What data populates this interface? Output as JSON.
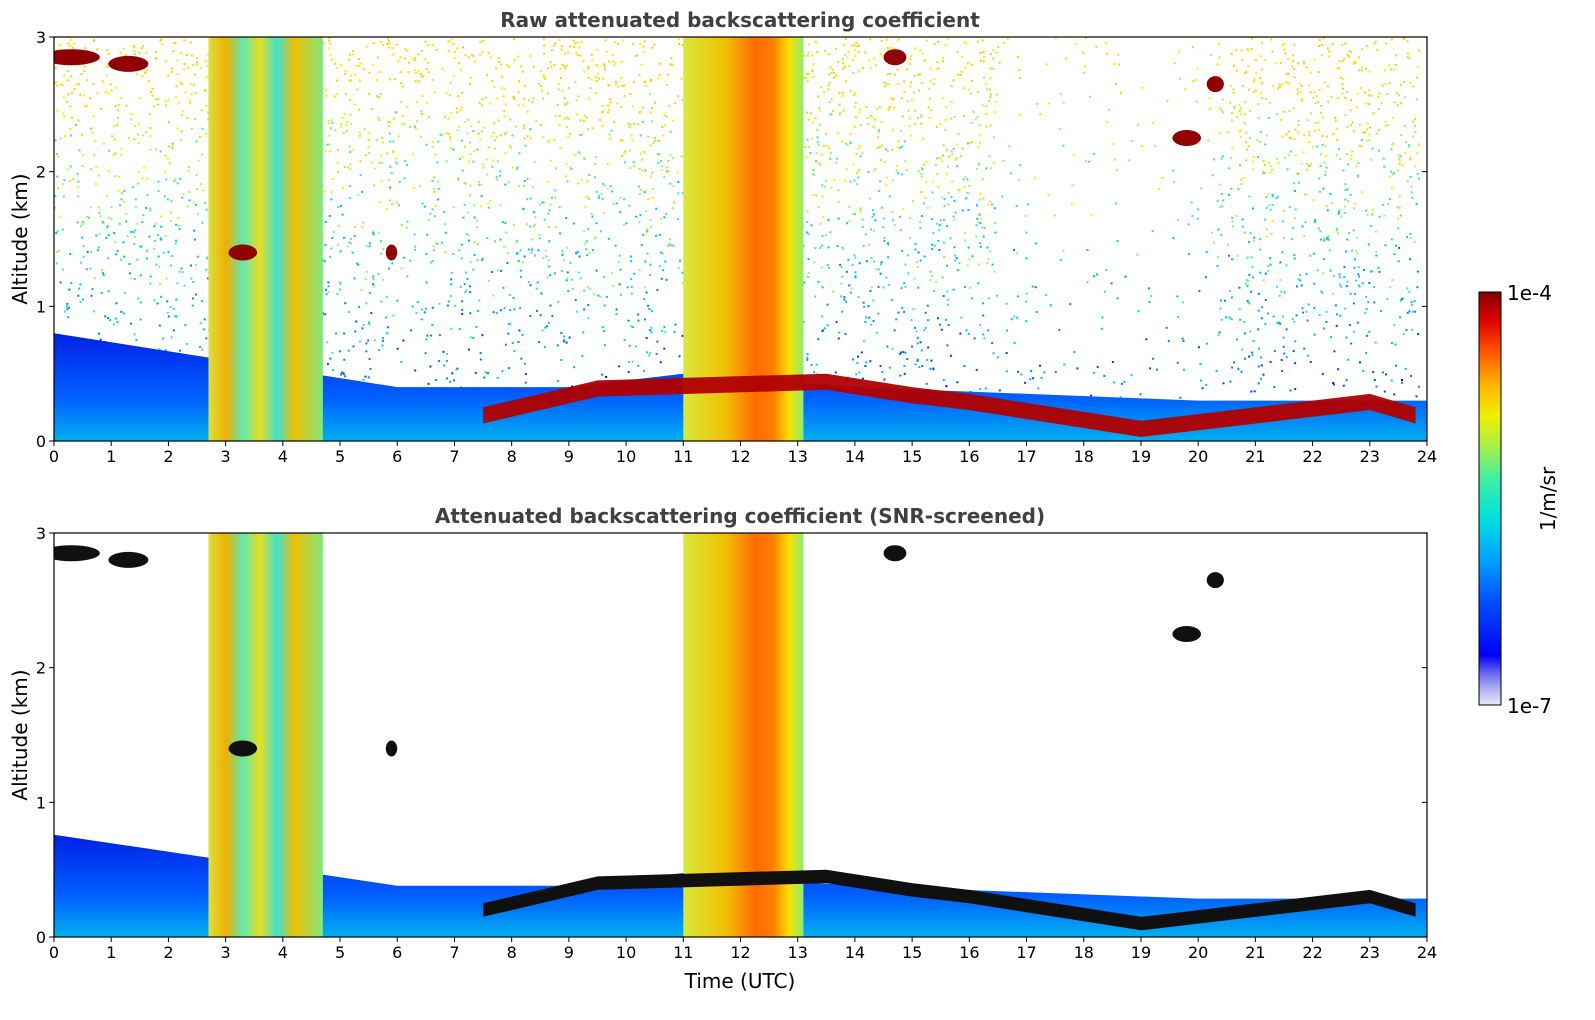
{
  "chart_data": [
    {
      "type": "heatmap",
      "title": "Raw attenuated backscattering coefficient",
      "xlabel": "",
      "ylabel": "Altitude (km)",
      "xlim": [
        0,
        24
      ],
      "ylim": [
        0,
        3
      ],
      "x_ticks": [
        "0",
        "1",
        "2",
        "3",
        "4",
        "5",
        "6",
        "7",
        "8",
        "9",
        "10",
        "11",
        "12",
        "13",
        "14",
        "15",
        "16",
        "17",
        "18",
        "19",
        "20",
        "21",
        "22",
        "23",
        "24"
      ],
      "y_ticks": [
        "0",
        "1",
        "2",
        "3"
      ],
      "scale": "log",
      "colormap": "jet",
      "features": {
        "aerosol_layer_top_km": [
          [
            0,
            0.8
          ],
          [
            3,
            0.6
          ],
          [
            6,
            0.4
          ],
          [
            9,
            0.4
          ],
          [
            11,
            0.5
          ],
          [
            14,
            0.4
          ],
          [
            20,
            0.3
          ],
          [
            22,
            0.3
          ],
          [
            24,
            0.3
          ]
        ],
        "dense_columns_utc": [
          [
            2.7,
            4.7
          ],
          [
            11.0,
            13.1
          ]
        ],
        "low_cloud_top_km": [
          [
            7.5,
            0.25
          ],
          [
            9.5,
            0.45
          ],
          [
            13.5,
            0.5
          ],
          [
            15,
            0.4
          ],
          [
            16,
            0.35
          ],
          [
            19,
            0.15
          ],
          [
            22,
            0.3
          ],
          [
            23,
            0.35
          ],
          [
            23.8,
            0.25
          ]
        ]
      }
    },
    {
      "type": "heatmap",
      "title": "Attenuated backscattering coefficient (SNR-screened)",
      "xlabel": "Time (UTC)",
      "ylabel": "Altitude (km)",
      "xlim": [
        0,
        24
      ],
      "ylim": [
        0,
        3
      ],
      "x_ticks": [
        "0",
        "1",
        "2",
        "3",
        "4",
        "5",
        "6",
        "7",
        "8",
        "9",
        "10",
        "11",
        "12",
        "13",
        "14",
        "15",
        "16",
        "17",
        "18",
        "19",
        "20",
        "21",
        "22",
        "23",
        "24"
      ],
      "y_ticks": [
        "0",
        "1",
        "2",
        "3"
      ],
      "scale": "log",
      "colormap": "jet"
    }
  ],
  "colorbar": {
    "label": "1/m/sr",
    "max_label": "1e-4",
    "min_label": "1e-7",
    "colors": [
      "#e8e8f8",
      "#b0b0f0",
      "#6060f0",
      "#0000f8",
      "#0050ff",
      "#00a0ff",
      "#00e0e0",
      "#40f0a0",
      "#a0f050",
      "#f0f000",
      "#ffb000",
      "#ff5000",
      "#e00000",
      "#800000"
    ]
  }
}
